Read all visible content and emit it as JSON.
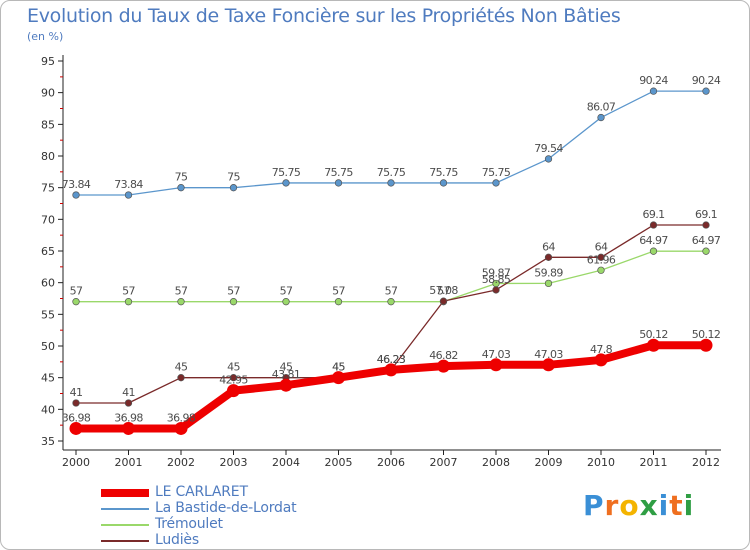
{
  "header": {
    "title": "Evolution du Taux de Taxe Foncière sur les Propriétés Non Bâties",
    "unit": "(en %)"
  },
  "logo": {
    "text": "Proxiti",
    "letters": [
      "P",
      "r",
      "o",
      "x",
      "i",
      "t",
      "i"
    ],
    "colors": [
      "#3a8fd6",
      "#ef6f20",
      "#f4b400",
      "#2f9e44",
      "#3a8fd6",
      "#ef6f20",
      "#2f9e44"
    ]
  },
  "chart_data": {
    "type": "line",
    "title": "Evolution du Taux de Taxe Foncière sur les Propriétés Non Bâties",
    "ylabel": "(en %)",
    "ylim": [
      35,
      95
    ],
    "yticks": [
      35,
      40,
      45,
      50,
      55,
      60,
      65,
      70,
      75,
      80,
      85,
      90,
      95
    ],
    "x": [
      "2000",
      "2001",
      "2002",
      "2003",
      "2004",
      "2005",
      "2006",
      "2007",
      "2008",
      "2009",
      "2010",
      "2011",
      "2012"
    ],
    "grid": false,
    "legend_position": "bottom-left",
    "series": [
      {
        "name": "LE CARLARET",
        "color": "#ee0000",
        "values": [
          36.98,
          36.98,
          36.98,
          42.95,
          43.81,
          45,
          46.23,
          46.82,
          47.03,
          47.03,
          47.8,
          50.12,
          50.12
        ],
        "labels": [
          "36.98",
          "36.98",
          "36.98",
          "42.95",
          "43.81",
          "45",
          "46.23",
          "46.82",
          "47.03",
          "47.03",
          "47.8",
          "50.12",
          "50.12"
        ]
      },
      {
        "name": "La Bastide-de-Lordat",
        "color": "#5b96cc",
        "values": [
          73.84,
          73.84,
          75,
          75,
          75.75,
          75.75,
          75.75,
          75.75,
          75.75,
          79.54,
          86.07,
          90.24,
          90.24
        ],
        "labels": [
          "73.84",
          "73.84",
          "75",
          "75",
          "75.75",
          "75.75",
          "75.75",
          "75.75",
          "75.75",
          "79.54",
          "86.07",
          "90.24",
          "90.24"
        ]
      },
      {
        "name": "Trémoulet",
        "color": "#9ad86a",
        "values": [
          57,
          57,
          57,
          57,
          57,
          57,
          57,
          57,
          59.87,
          59.89,
          61.96,
          64.97,
          64.97
        ],
        "labels": [
          "57",
          "57",
          "57",
          "57",
          "57",
          "57",
          "57",
          "57",
          "59.87",
          "59.89",
          "61.96",
          "64.97",
          "64.97"
        ]
      },
      {
        "name": "Ludiès",
        "color": "#7a2a2a",
        "values": [
          41,
          41,
          45,
          45,
          45,
          45,
          46.23,
          57.08,
          58.85,
          64,
          64,
          69.1,
          69.1
        ],
        "labels": [
          "41",
          "41",
          "45",
          "45",
          "45",
          "45",
          "46.23",
          "57.08",
          "58.85",
          "64",
          "64",
          "69.1",
          "69.1"
        ]
      }
    ]
  }
}
